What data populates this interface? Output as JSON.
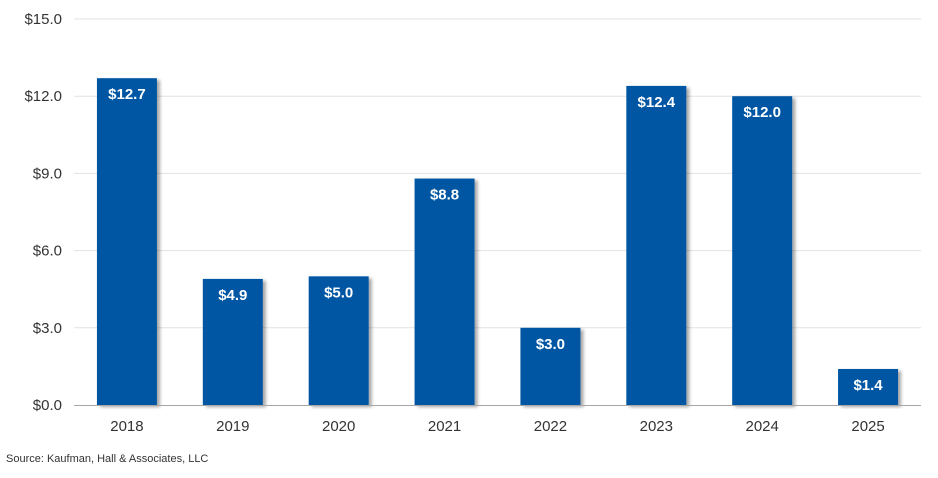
{
  "chart_data": {
    "type": "bar",
    "categories": [
      "2018",
      "2019",
      "2020",
      "2021",
      "2022",
      "2023",
      "2024",
      "2025"
    ],
    "values": [
      12.7,
      4.9,
      5.0,
      8.8,
      3.0,
      12.4,
      12.0,
      1.4
    ],
    "data_labels": [
      "$12.7",
      "$4.9",
      "$5.0",
      "$8.8",
      "$3.0",
      "$12.4",
      "$12.0",
      "$1.4"
    ],
    "y_ticks": [
      0,
      3,
      6,
      9,
      12,
      15
    ],
    "y_tick_labels": [
      "$0.0",
      "$3.0",
      "$6.0",
      "$9.0",
      "$12.0",
      "$15.0"
    ],
    "ylim": [
      0,
      15
    ],
    "title": "",
    "xlabel": "",
    "ylabel": "",
    "grid": true,
    "legend": "none",
    "bar_color": "#0657A3",
    "grid_color": "#E2E2E2",
    "axis_color": "#A6A6A6",
    "label_color": "#333333",
    "data_label_color": "#FFFFFF"
  },
  "source": "Source: Kaufman, Hall & Associates, LLC"
}
